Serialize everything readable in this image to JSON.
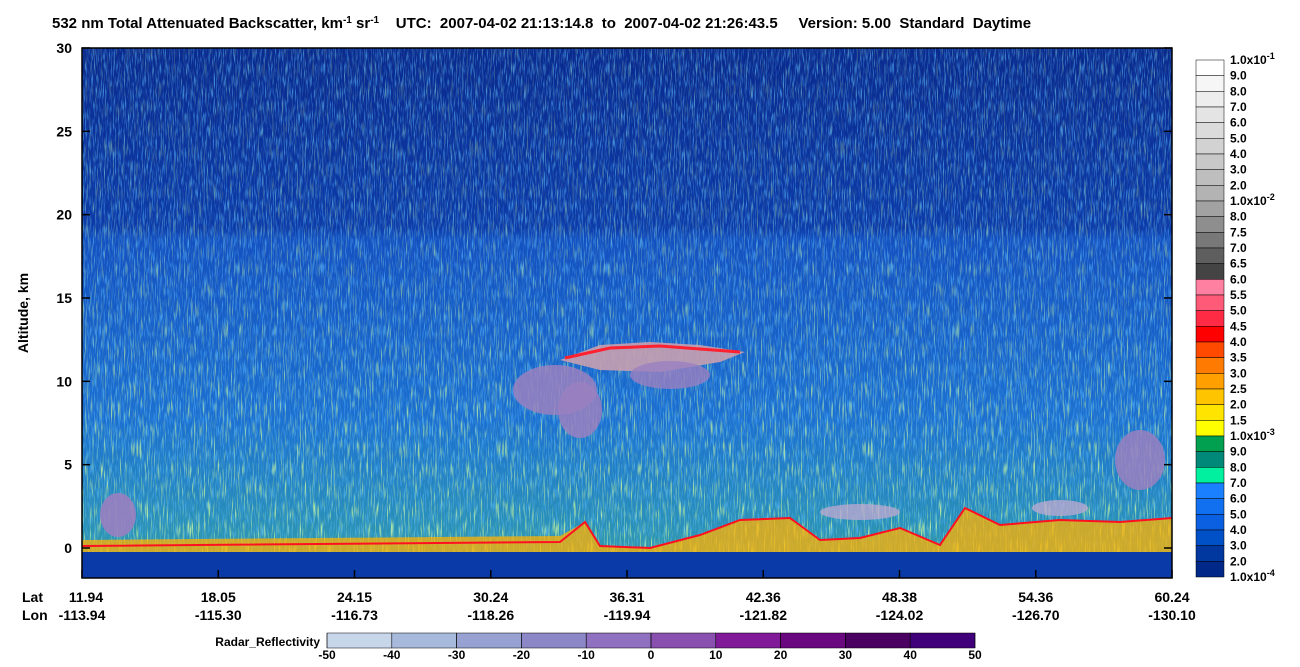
{
  "chart_data": {
    "type": "heatmap",
    "title": [
      {
        "text": "532 nm Total Attenuated Backscatter, km"
      },
      {
        "sup": "-1"
      },
      {
        "text": " sr"
      },
      {
        "sup": "-1"
      },
      {
        "text": "    UTC:  2007-04-02 21:13:14.8  to  2007-04-02 21:26:43.5     Version: 5.00  Standard  Daytime"
      }
    ],
    "y_label": "Altitude, km",
    "ylim": [
      -1.8,
      30
    ],
    "yticks": [
      0,
      5,
      10,
      15,
      20,
      25,
      30
    ],
    "lat_name": "Lat",
    "lon_name": "Lon",
    "lat_labels": [
      "11.94",
      "18.05",
      "24.15",
      "30.24",
      "36.31",
      "42.36",
      "48.38",
      "54.36",
      "60.24"
    ],
    "lon_labels": [
      "-113.94",
      "-115.30",
      "-116.73",
      "-118.26",
      "-119.94",
      "-121.82",
      "-124.02",
      "-126.70",
      "-130.10"
    ],
    "colorbar": {
      "levels": [
        {
          "base": "1.0x10",
          "sup": "-1"
        },
        "9.0",
        "8.0",
        "7.0",
        "6.0",
        "5.0",
        "4.0",
        "3.0",
        "2.0",
        {
          "base": "1.0x10",
          "sup": "-2"
        },
        "8.0",
        "7.5",
        "7.0",
        "6.5",
        "6.0",
        "5.5",
        "5.0",
        "4.5",
        "4.0",
        "3.5",
        "3.0",
        "2.5",
        "2.0",
        "1.5",
        {
          "base": "1.0x10",
          "sup": "-3"
        },
        "9.0",
        "8.0",
        "7.0",
        "6.0",
        "5.0",
        "4.0",
        "3.0",
        "2.0",
        {
          "base": "1.0x10",
          "sup": "-4"
        }
      ],
      "colors": [
        "#ffffff",
        "#f6f6f6",
        "#ededed",
        "#e4e4e4",
        "#dbdbdb",
        "#d2d2d2",
        "#c8c8c8",
        "#bebebe",
        "#b3b3b3",
        "#a2a2a2",
        "#8e8e8e",
        "#787878",
        "#5e5e5e",
        "#444444",
        "#ff80a0",
        "#ff5a78",
        "#ff2a44",
        "#ff0000",
        "#ff4a00",
        "#ff7a00",
        "#ffa000",
        "#ffc400",
        "#ffe400",
        "#ffff00",
        "#00a050",
        "#008878",
        "#00f0a0",
        "#1a80ff",
        "#1070f0",
        "#0a60e0",
        "#0050c8",
        "#0038a0",
        "#002888"
      ]
    },
    "radar": {
      "label": "Radar_Reflectivity",
      "ticks": [
        -50,
        -40,
        -30,
        -20,
        -10,
        0,
        10,
        20,
        30,
        40,
        50
      ],
      "colors": [
        "#c8d6ea",
        "#a8badc",
        "#98a2d2",
        "#8c88c8",
        "#9070c0",
        "#8a50b0",
        "#801a98",
        "#6a0880",
        "#4a0060",
        "#40007a"
      ]
    }
  }
}
